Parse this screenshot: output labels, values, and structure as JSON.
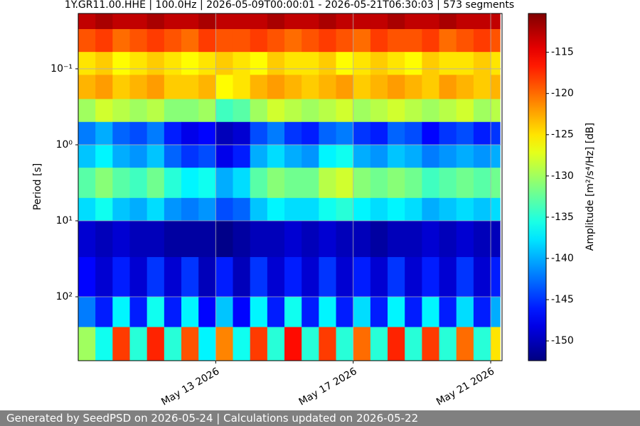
{
  "chart_data": {
    "type": "heatmap",
    "title": "1Y.GR11.00.HHE | 100.0Hz | 2026-05-09T00:00:01 - 2026-05-21T06:30:03 | 573 segments",
    "ylabel": "Period [s]",
    "colorbar_label": "Amplitude [m²/s⁴/Hz] [dB]",
    "colormap": "jet",
    "yscale": "log",
    "yinverted": true,
    "grid": true,
    "xlim": [
      "2026-05-09T00:00",
      "2026-05-21T07:55"
    ],
    "xticks": [
      {
        "value": "2026-05-13T00:00",
        "label": "May 13 2026"
      },
      {
        "value": "2026-05-17T00:00",
        "label": "May 17 2026"
      },
      {
        "value": "2026-05-21T00:00",
        "label": "May 21 2026"
      }
    ],
    "ylim": [
      0.0187,
      693
    ],
    "yticks": [
      {
        "value": 0.1,
        "label": "10⁻¹"
      },
      {
        "value": 1,
        "label": "10⁰"
      },
      {
        "value": 10,
        "label": "10¹"
      },
      {
        "value": 100,
        "label": "10²"
      }
    ],
    "clim": [
      -152.4,
      -110.3
    ],
    "cticks": [
      -115,
      -120,
      -125,
      -130,
      -135,
      -140,
      -145,
      -150
    ],
    "xbins": [
      "2026-05-09T00:00",
      "2026-05-09T12:00",
      "2026-05-10T00:00",
      "2026-05-10T12:00",
      "2026-05-11T00:00",
      "2026-05-11T12:00",
      "2026-05-12T00:00",
      "2026-05-12T12:00",
      "2026-05-13T00:00",
      "2026-05-13T12:00",
      "2026-05-14T00:00",
      "2026-05-14T12:00",
      "2026-05-15T00:00",
      "2026-05-15T12:00",
      "2026-05-16T00:00",
      "2026-05-16T12:00",
      "2026-05-17T00:00",
      "2026-05-17T12:00",
      "2026-05-18T00:00",
      "2026-05-18T12:00",
      "2026-05-19T00:00",
      "2026-05-19T12:00",
      "2026-05-20T00:00",
      "2026-05-20T12:00",
      "2026-05-21T00:00",
      "2026-05-21T06:30"
    ],
    "ybins": [
      0.0187,
      0.03,
      0.06,
      0.12,
      0.25,
      0.5,
      1,
      2,
      5,
      10,
      30,
      100,
      250,
      693
    ],
    "values": [
      [
        -113,
        -112,
        -113,
        -113,
        -112,
        -113,
        -113,
        -112,
        -113,
        -113,
        -113,
        -112,
        -113,
        -113,
        -112,
        -113,
        -113,
        -113,
        -112,
        -113,
        -113,
        -112,
        -113,
        -113,
        -113
      ],
      [
        -119,
        -118,
        -120,
        -119,
        -118,
        -119,
        -120,
        -118,
        -119,
        -119,
        -118,
        -119,
        -120,
        -119,
        -118,
        -119,
        -120,
        -118,
        -119,
        -119,
        -118,
        -120,
        -119,
        -118,
        -119
      ],
      [
        -125,
        -124,
        -126,
        -125,
        -124,
        -125,
        -126,
        -125,
        -124,
        -125,
        -126,
        -124,
        -125,
        -125,
        -124,
        -126,
        -125,
        -124,
        -125,
        -126,
        -124,
        -125,
        -125,
        -124,
        -125
      ],
      [
        -123,
        -122,
        -124,
        -123,
        -122,
        -124,
        -124,
        -123,
        -126,
        -125,
        -123,
        -122,
        -123,
        -124,
        -123,
        -122,
        -124,
        -123,
        -122,
        -123,
        -124,
        -122,
        -123,
        -124,
        -123
      ],
      [
        -130,
        -128,
        -129,
        -130,
        -129,
        -131,
        -131,
        -130,
        -134,
        -133,
        -130,
        -128,
        -129,
        -130,
        -129,
        -128,
        -130,
        -129,
        -128,
        -129,
        -130,
        -129,
        -128,
        -130,
        -129
      ],
      [
        -142,
        -140,
        -143,
        -144,
        -142,
        -146,
        -148,
        -147,
        -150,
        -149,
        -144,
        -142,
        -145,
        -146,
        -143,
        -142,
        -145,
        -146,
        -143,
        -144,
        -147,
        -145,
        -144,
        -146,
        -145
      ],
      [
        -139,
        -137,
        -140,
        -141,
        -139,
        -143,
        -145,
        -144,
        -148,
        -146,
        -140,
        -138,
        -140,
        -141,
        -137,
        -136,
        -140,
        -141,
        -139,
        -140,
        -142,
        -141,
        -140,
        -141,
        -140
      ],
      [
        -133,
        -131,
        -133,
        -134,
        -132,
        -135,
        -137,
        -136,
        -140,
        -138,
        -133,
        -131,
        -132,
        -132,
        -129,
        -128,
        -131,
        -132,
        -131,
        -132,
        -134,
        -133,
        -132,
        -133,
        -132
      ],
      [
        -138,
        -136,
        -139,
        -140,
        -138,
        -141,
        -142,
        -141,
        -144,
        -143,
        -139,
        -137,
        -138,
        -138,
        -136,
        -135,
        -137,
        -138,
        -137,
        -138,
        -140,
        -139,
        -138,
        -139,
        -138
      ],
      [
        -149,
        -150,
        -149,
        -150,
        -150,
        -151,
        -151,
        -151,
        -152,
        -151,
        -150,
        -150,
        -149,
        -150,
        -149,
        -150,
        -150,
        -151,
        -150,
        -150,
        -149,
        -150,
        -149,
        -150,
        -150
      ],
      [
        -147,
        -149,
        -146,
        -149,
        -145,
        -149,
        -145,
        -150,
        -146,
        -150,
        -145,
        -149,
        -146,
        -149,
        -145,
        -149,
        -146,
        -149,
        -145,
        -149,
        -146,
        -149,
        -145,
        -149,
        -146
      ],
      [
        -142,
        -146,
        -137,
        -146,
        -136,
        -146,
        -137,
        -147,
        -139,
        -147,
        -137,
        -146,
        -136,
        -146,
        -137,
        -146,
        -138,
        -146,
        -137,
        -146,
        -137,
        -146,
        -138,
        -146,
        -140
      ],
      [
        -130,
        -136,
        -118,
        -135,
        -117,
        -135,
        -119,
        -137,
        -121,
        -136,
        -118,
        -135,
        -116,
        -135,
        -118,
        -135,
        -120,
        -135,
        -117,
        -135,
        -118,
        -135,
        -120,
        -135,
        -125
      ]
    ]
  },
  "footer": {
    "text": "Generated by SeedPSD on 2026-05-24 | Calculations updated on 2026-05-22"
  }
}
